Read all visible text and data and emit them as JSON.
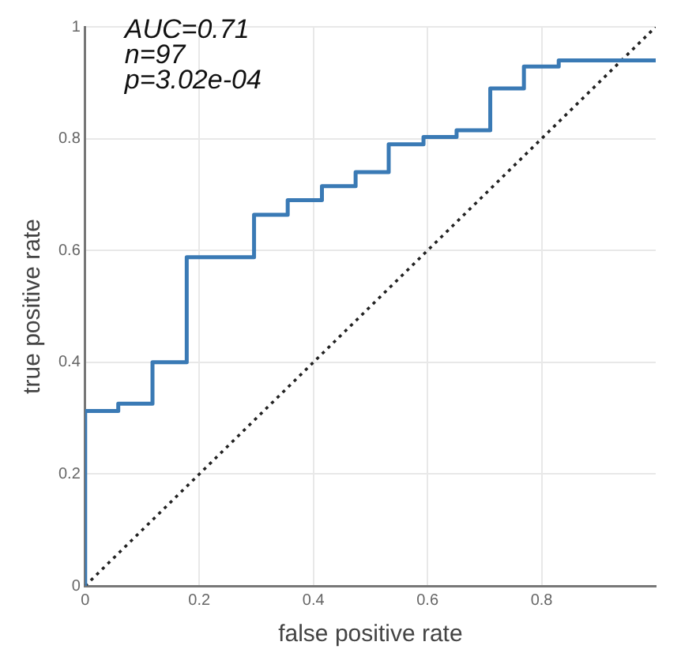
{
  "chart_data": {
    "type": "step",
    "xlabel": "false positive rate",
    "ylabel": "true positive rate",
    "annotations": [
      "AUC=0.71",
      "n=97",
      "p=3.02e-04"
    ],
    "xlim": [
      0,
      1
    ],
    "ylim": [
      0,
      1
    ],
    "xticks": [
      0,
      0.2,
      0.4,
      0.6,
      0.8
    ],
    "yticks": [
      0,
      0.2,
      0.4,
      0.6,
      0.8,
      1
    ],
    "grid": true,
    "legend": false,
    "series": [
      {
        "type": "step",
        "color": "#3a7ab5",
        "x": [
          0,
          0,
          0.058,
          0.118,
          0.178,
          0.296,
          0.355,
          0.415,
          0.474,
          0.532,
          0.593,
          0.651,
          0.71,
          0.769,
          0.83,
          1
        ],
        "values": [
          0,
          0.313,
          0.326,
          0.4,
          0.588,
          0.664,
          0.69,
          0.715,
          0.74,
          0.79,
          0.803,
          0.815,
          0.89,
          0.929,
          0.94,
          0.94
        ]
      },
      {
        "type": "line",
        "color": "#222222",
        "line_style": "dotted",
        "x": [
          0,
          1
        ],
        "values": [
          0,
          1
        ]
      }
    ]
  }
}
